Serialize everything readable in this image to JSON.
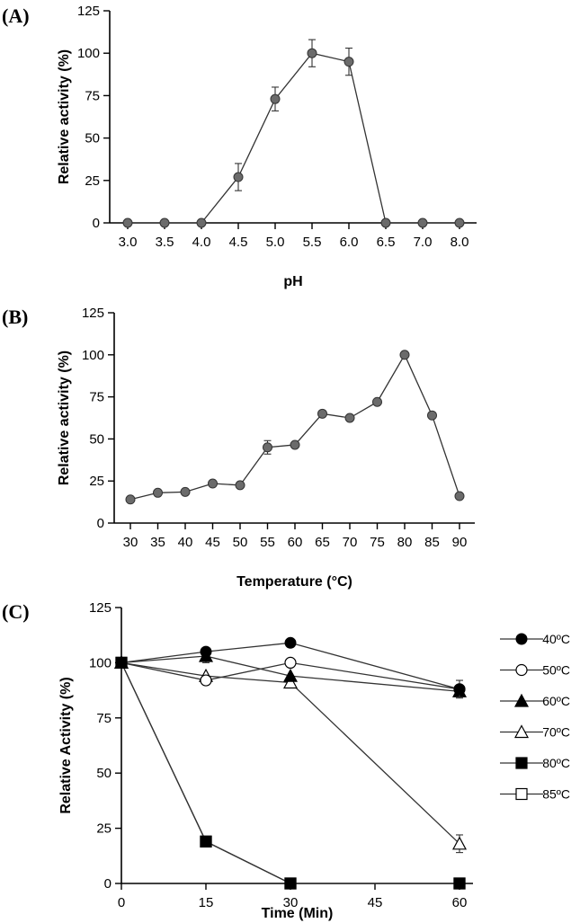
{
  "chart_data": [
    {
      "type": "line",
      "panel": "(A)",
      "xlabel": "pH",
      "ylabel": "Relative activity (%)",
      "ylim": [
        0,
        125
      ],
      "yticks": [
        0,
        25,
        50,
        75,
        100,
        125
      ],
      "categories": [
        "3.0",
        "3.5",
        "4.0",
        "4.5",
        "5.0",
        "5.5",
        "6.0",
        "6.5",
        "7.0",
        "8.0"
      ],
      "values": [
        0,
        0,
        0,
        27,
        73,
        100,
        95,
        0,
        0,
        0
      ],
      "errors": [
        0,
        0,
        0,
        8,
        7,
        8,
        8,
        0,
        0,
        0
      ],
      "marker": "circle-gray"
    },
    {
      "type": "line",
      "panel": "(B)",
      "xlabel": "Temperature (°C)",
      "ylabel": "Relative activity (%)",
      "ylim": [
        0,
        125
      ],
      "yticks": [
        0,
        25,
        50,
        75,
        100,
        125
      ],
      "categories": [
        "30",
        "35",
        "40",
        "45",
        "50",
        "55",
        "60",
        "65",
        "70",
        "75",
        "80",
        "85",
        "90"
      ],
      "values": [
        14,
        18,
        18.5,
        23.5,
        22.5,
        45,
        46.5,
        65,
        62.5,
        72,
        100,
        64,
        16
      ],
      "errors": [
        0,
        0,
        0,
        0,
        0,
        4,
        0,
        0,
        0,
        0,
        0,
        0,
        0
      ],
      "marker": "circle-gray"
    },
    {
      "type": "line",
      "panel": "(C)",
      "xlabel": "Time (Min)",
      "ylabel": "Relative Activity (%)",
      "ylim": [
        0,
        125
      ],
      "yticks": [
        0,
        25,
        50,
        75,
        100,
        125
      ],
      "xlim": [
        0,
        60
      ],
      "xticks": [
        0,
        15,
        30,
        45,
        60
      ],
      "x": [
        0,
        15,
        30,
        60
      ],
      "series": [
        {
          "name": "40ºC",
          "marker": "circle-filled",
          "values": [
            100,
            105,
            109,
            88
          ],
          "errors": [
            0,
            0,
            0,
            4
          ]
        },
        {
          "name": "50ºC",
          "marker": "circle-open",
          "values": [
            100,
            92,
            100,
            88
          ],
          "errors": [
            0,
            2,
            0,
            0
          ]
        },
        {
          "name": "60ºC",
          "marker": "triangle-filled",
          "values": [
            100,
            103,
            94,
            87
          ],
          "errors": [
            0,
            3,
            0,
            2
          ]
        },
        {
          "name": "70ºC",
          "marker": "triangle-open",
          "values": [
            100,
            94,
            91,
            18
          ],
          "errors": [
            0,
            0,
            0,
            4
          ]
        },
        {
          "name": "80ºC",
          "marker": "square-filled",
          "values": [
            100,
            19,
            0,
            0
          ],
          "errors": [
            0,
            0,
            0,
            0
          ]
        },
        {
          "name": "85ºC",
          "marker": "square-open",
          "values": [
            100,
            19,
            0,
            0
          ],
          "errors": [
            0,
            0,
            0,
            0
          ]
        }
      ],
      "legend_position": "right"
    }
  ]
}
